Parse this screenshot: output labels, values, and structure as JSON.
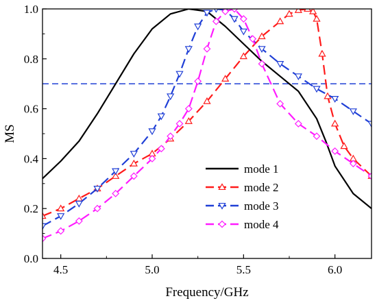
{
  "chart_data": {
    "type": "line",
    "xlabel": "Frequency/GHz",
    "ylabel": "MS",
    "xlim": [
      4.4,
      6.2
    ],
    "ylim": [
      0.0,
      1.0
    ],
    "x_ticks": [
      "4.5",
      "5.0",
      "5.5",
      "6.0"
    ],
    "y_ticks": [
      "0.0",
      "0.2",
      "0.4",
      "0.6",
      "0.8",
      "1.0"
    ],
    "legend_position": "lower-right",
    "reference_line": {
      "y": 0.7,
      "color": "#1f3fd6",
      "style": "dashed"
    },
    "series": [
      {
        "name": "mode 1",
        "color": "#000000",
        "dash": "solid",
        "marker": "none",
        "x": [
          4.4,
          4.5,
          4.6,
          4.7,
          4.8,
          4.9,
          5.0,
          5.1,
          5.2,
          5.3,
          5.4,
          5.5,
          5.6,
          5.7,
          5.8,
          5.9,
          5.95,
          6.0,
          6.1,
          6.2
        ],
        "y": [
          0.32,
          0.39,
          0.47,
          0.58,
          0.7,
          0.82,
          0.92,
          0.98,
          1.0,
          0.99,
          0.93,
          0.86,
          0.79,
          0.73,
          0.67,
          0.56,
          0.47,
          0.37,
          0.26,
          0.2
        ]
      },
      {
        "name": "mode 2",
        "color": "#ff1a1a",
        "dash": "dashed",
        "marker": "triangle-up",
        "x": [
          4.4,
          4.5,
          4.6,
          4.7,
          4.8,
          4.9,
          5.0,
          5.1,
          5.2,
          5.3,
          5.4,
          5.5,
          5.6,
          5.7,
          5.75,
          5.8,
          5.85,
          5.88,
          5.9,
          5.93,
          5.96,
          6.0,
          6.05,
          6.1,
          6.2
        ],
        "y": [
          0.17,
          0.2,
          0.24,
          0.28,
          0.33,
          0.38,
          0.42,
          0.48,
          0.55,
          0.63,
          0.72,
          0.81,
          0.89,
          0.95,
          0.98,
          0.995,
          1.0,
          0.99,
          0.96,
          0.82,
          0.65,
          0.54,
          0.45,
          0.4,
          0.33
        ]
      },
      {
        "name": "mode 3",
        "color": "#1f3fd6",
        "dash": "dashed",
        "marker": "triangle-down",
        "x": [
          4.4,
          4.5,
          4.6,
          4.7,
          4.8,
          4.9,
          5.0,
          5.05,
          5.1,
          5.15,
          5.2,
          5.25,
          5.3,
          5.35,
          5.4,
          5.45,
          5.5,
          5.6,
          5.7,
          5.8,
          5.9,
          6.0,
          6.1,
          6.2
        ],
        "y": [
          0.13,
          0.17,
          0.22,
          0.28,
          0.35,
          0.42,
          0.51,
          0.57,
          0.65,
          0.74,
          0.84,
          0.93,
          0.985,
          1.0,
          0.995,
          0.96,
          0.91,
          0.84,
          0.78,
          0.73,
          0.68,
          0.64,
          0.59,
          0.54
        ]
      },
      {
        "name": "mode 4",
        "color": "#ff1aff",
        "dash": "dashed",
        "marker": "diamond",
        "x": [
          4.4,
          4.5,
          4.6,
          4.7,
          4.8,
          4.9,
          5.0,
          5.05,
          5.1,
          5.15,
          5.2,
          5.25,
          5.3,
          5.35,
          5.4,
          5.45,
          5.5,
          5.55,
          5.6,
          5.7,
          5.8,
          5.9,
          6.0,
          6.1,
          6.2
        ],
        "y": [
          0.08,
          0.11,
          0.15,
          0.2,
          0.26,
          0.33,
          0.4,
          0.44,
          0.49,
          0.54,
          0.6,
          0.71,
          0.84,
          0.95,
          0.99,
          1.0,
          0.96,
          0.88,
          0.78,
          0.62,
          0.54,
          0.49,
          0.43,
          0.38,
          0.33
        ]
      }
    ]
  }
}
